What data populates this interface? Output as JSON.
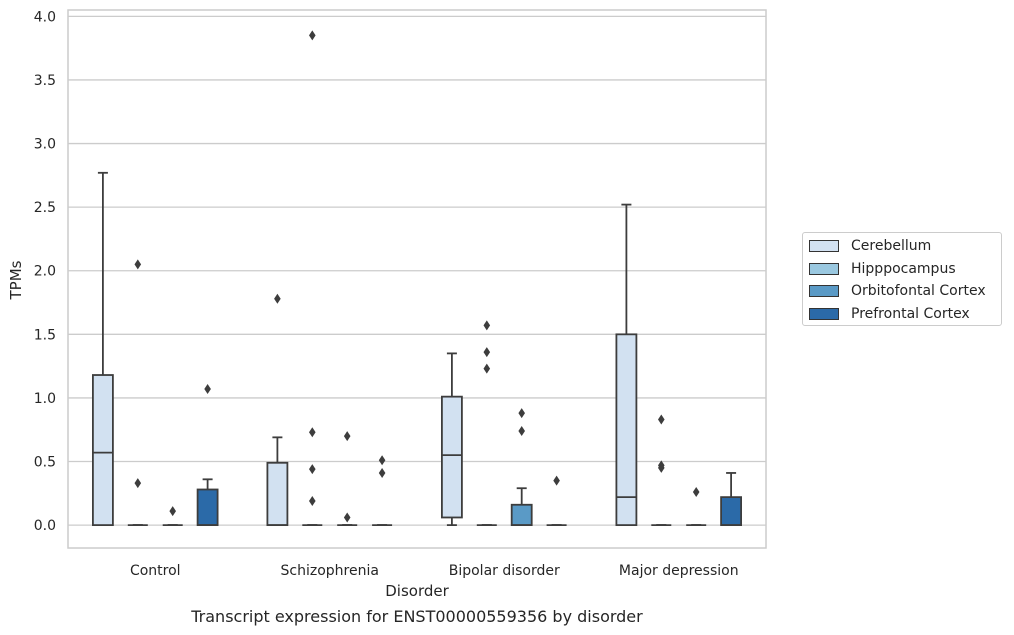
{
  "chart_data": {
    "type": "box",
    "title": "Transcript expression for ENST00000559356 by disorder",
    "xlabel": "Disorder",
    "ylabel": "TPMs",
    "ylim": [
      -0.18,
      4.05
    ],
    "yticks": [
      "0.0",
      "0.5",
      "1.0",
      "1.5",
      "2.0",
      "2.5",
      "3.0",
      "3.5",
      "4.0"
    ],
    "ytick_values": [
      0,
      0.5,
      1.0,
      1.5,
      2.0,
      2.5,
      3.0,
      3.5,
      4.0
    ],
    "grid": true,
    "legend_position": "right",
    "categories": [
      "Control",
      "Schizophrenia",
      "Bipolar disorder",
      "Major depression"
    ],
    "series": [
      {
        "name": "Cerebellum",
        "color": "#d2e1f1",
        "boxes": [
          {
            "q1": 0.0,
            "median": 0.57,
            "q3": 1.18,
            "whislo": 0.0,
            "whishi": 2.77,
            "outliers": []
          },
          {
            "q1": 0.0,
            "median": 0.0,
            "q3": 0.49,
            "whislo": 0.0,
            "whishi": 0.69,
            "outliers": [
              1.78
            ]
          },
          {
            "q1": 0.06,
            "median": 0.55,
            "q3": 1.01,
            "whislo": 0.0,
            "whishi": 1.35,
            "outliers": []
          },
          {
            "q1": 0.0,
            "median": 0.22,
            "q3": 1.5,
            "whislo": 0.0,
            "whishi": 2.52,
            "outliers": []
          }
        ]
      },
      {
        "name": "Hipppocampus",
        "color": "#9ac8e0",
        "boxes": [
          {
            "q1": 0.0,
            "median": 0.0,
            "q3": 0.0,
            "whislo": 0.0,
            "whishi": 0.0,
            "outliers": [
              2.05,
              0.33
            ]
          },
          {
            "q1": 0.0,
            "median": 0.0,
            "q3": 0.0,
            "whislo": 0.0,
            "whishi": 0.0,
            "outliers": [
              3.85,
              0.73,
              0.44,
              0.19
            ]
          },
          {
            "q1": 0.0,
            "median": 0.0,
            "q3": 0.0,
            "whislo": 0.0,
            "whishi": 0.0,
            "outliers": [
              1.57,
              1.36,
              1.23
            ]
          },
          {
            "q1": 0.0,
            "median": 0.0,
            "q3": 0.0,
            "whislo": 0.0,
            "whishi": 0.0,
            "outliers": [
              0.83,
              0.47,
              0.45
            ]
          }
        ]
      },
      {
        "name": "Orbitofontal Cortex",
        "color": "#5a9ac6",
        "boxes": [
          {
            "q1": 0.0,
            "median": 0.0,
            "q3": 0.0,
            "whislo": 0.0,
            "whishi": 0.0,
            "outliers": [
              0.11
            ]
          },
          {
            "q1": 0.0,
            "median": 0.0,
            "q3": 0.0,
            "whislo": 0.0,
            "whishi": 0.0,
            "outliers": [
              0.7,
              0.06
            ]
          },
          {
            "q1": 0.0,
            "median": 0.0,
            "q3": 0.16,
            "whislo": 0.0,
            "whishi": 0.29,
            "outliers": [
              0.88,
              0.74
            ]
          },
          {
            "q1": 0.0,
            "median": 0.0,
            "q3": 0.0,
            "whislo": 0.0,
            "whishi": 0.0,
            "outliers": [
              0.26
            ]
          }
        ]
      },
      {
        "name": "Prefrontal Cortex",
        "color": "#2b6aa8",
        "boxes": [
          {
            "q1": 0.0,
            "median": 0.0,
            "q3": 0.28,
            "whislo": 0.0,
            "whishi": 0.36,
            "outliers": [
              1.07
            ]
          },
          {
            "q1": 0.0,
            "median": 0.0,
            "q3": 0.0,
            "whislo": 0.0,
            "whishi": 0.0,
            "outliers": [
              0.51,
              0.41
            ]
          },
          {
            "q1": 0.0,
            "median": 0.0,
            "q3": 0.0,
            "whislo": 0.0,
            "whishi": 0.0,
            "outliers": [
              0.35
            ]
          },
          {
            "q1": 0.0,
            "median": 0.0,
            "q3": 0.22,
            "whislo": 0.0,
            "whishi": 0.41,
            "outliers": []
          }
        ]
      }
    ]
  }
}
